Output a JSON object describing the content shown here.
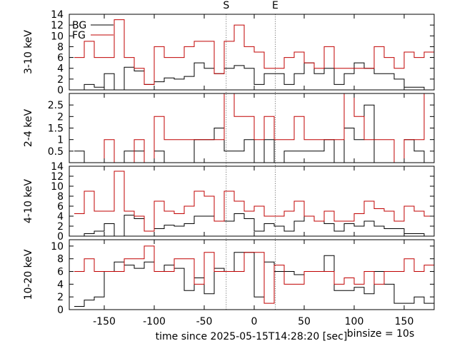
{
  "chart_data": {
    "type": "line",
    "drawstyle": "steps",
    "xlabel": "time since 2025-05-15T14:28:20 [sec]",
    "note": "binsize = 10s",
    "xlim": [
      -185,
      180
    ],
    "x_ticks": [
      -150,
      -100,
      -50,
      0,
      50,
      100,
      150
    ],
    "bin_size": 10,
    "x": [
      -180,
      -170,
      -160,
      -150,
      -140,
      -130,
      -120,
      -110,
      -100,
      -90,
      -80,
      -70,
      -60,
      -50,
      -40,
      -30,
      -20,
      -10,
      0,
      10,
      20,
      30,
      40,
      50,
      60,
      70,
      80,
      90,
      100,
      110,
      120,
      130,
      140,
      150,
      160,
      170
    ],
    "markers": [
      {
        "label": "S",
        "x": -28
      },
      {
        "label": "E",
        "x": 21
      }
    ],
    "panels": [
      {
        "ylabel": "3-10 keV",
        "ylim": [
          0,
          14
        ],
        "y_ticks": [
          0,
          2,
          4,
          6,
          8,
          10,
          12,
          14
        ],
        "series": [
          {
            "name": "BG",
            "color": "#000000",
            "values": [
              0,
              1,
              0.5,
              3,
              0,
              4.2,
              3.5,
              1,
              1.5,
              2.2,
              2,
              2.5,
              5,
              4,
              3,
              4,
              4.5,
              4,
              1,
              3,
              3,
              1,
              3,
              5,
              3,
              4,
              1,
              3,
              5,
              4,
              3,
              3,
              2,
              0.5,
              0.5,
              0
            ]
          },
          {
            "name": "FG",
            "color": "#c00000",
            "values": [
              6,
              9,
              6,
              6,
              13,
              6,
              4,
              1,
              8,
              6,
              6,
              8,
              9,
              9,
              3,
              9,
              12,
              8,
              7,
              4,
              4,
              6,
              7,
              5,
              4,
              8,
              4,
              4,
              4,
              4,
              8,
              6,
              4,
              7,
              6,
              7
            ]
          }
        ]
      },
      {
        "ylabel": "2-4 keV",
        "ylim": [
          0,
          3
        ],
        "y_ticks": [
          0.5,
          1,
          1.5,
          2,
          2.5
        ],
        "series": [
          {
            "name": "BG",
            "color": "#000000",
            "values": [
              0.5,
              0,
              0,
              0,
              0,
              0.5,
              0.5,
              0,
              0.5,
              0,
              0,
              0,
              1,
              1,
              1.5,
              0.5,
              0.5,
              1,
              0,
              1,
              0,
              0.5,
              0.5,
              0.5,
              0.5,
              1,
              0,
              1.5,
              1,
              2.5,
              0,
              0,
              0,
              1,
              0.5,
              0
            ]
          },
          {
            "name": "FG",
            "color": "#c00000",
            "values": [
              0,
              0,
              0,
              1,
              0,
              0,
              1,
              0,
              2,
              1,
              1,
              1,
              1,
              1,
              1,
              3,
              2,
              2,
              1,
              2,
              1,
              1,
              2,
              1,
              1,
              1,
              1,
              3,
              2,
              1,
              1,
              1,
              0,
              1,
              1,
              3
            ]
          }
        ]
      },
      {
        "ylabel": "4-10 keV",
        "ylim": [
          0,
          14
        ],
        "y_ticks": [
          0,
          2,
          4,
          6,
          8,
          10,
          12,
          14
        ],
        "series": [
          {
            "name": "BG",
            "color": "#000000",
            "values": [
              0,
              0.5,
              1,
              2.5,
              0,
              4.2,
              3.5,
              1,
              1.5,
              2.2,
              2,
              2.5,
              4,
              4,
              3,
              3,
              4.5,
              3.5,
              1,
              2.5,
              2,
              1,
              3,
              4,
              3,
              2.5,
              1,
              2.5,
              2,
              3,
              2,
              1.5,
              1.5,
              0.5,
              0.5,
              0
            ]
          },
          {
            "name": "FG",
            "color": "#c00000",
            "values": [
              4.5,
              9,
              5,
              5,
              13,
              5,
              4,
              1,
              7,
              5,
              4.5,
              6,
              9,
              8,
              3,
              9,
              7,
              5,
              6,
              4,
              4,
              5,
              7,
              4,
              3,
              5,
              3,
              3,
              4.5,
              7,
              5.5,
              5,
              3,
              6,
              5,
              4
            ]
          }
        ]
      },
      {
        "ylabel": "10-20 keV",
        "ylim": [
          0,
          11
        ],
        "y_ticks": [
          0,
          2,
          4,
          6,
          8,
          10
        ],
        "series": [
          {
            "name": "BG",
            "color": "#000000",
            "values": [
              0.5,
              1.5,
              2,
              6,
              7.5,
              7,
              6.5,
              7.5,
              6,
              7,
              6.5,
              3,
              5,
              2.5,
              6.5,
              6,
              9,
              9,
              2,
              7.5,
              6,
              6,
              5.5,
              6,
              6,
              8.5,
              3,
              3,
              3.5,
              2.5,
              6,
              4,
              1,
              1,
              2,
              1
            ]
          },
          {
            "name": "FG",
            "color": "#c00000",
            "values": [
              6,
              8,
              6,
              6,
              6,
              8,
              8,
              10,
              6,
              6,
              8,
              8,
              4,
              9,
              6,
              6,
              6,
              9,
              9,
              1,
              7,
              4,
              4,
              6,
              6,
              6,
              4,
              5,
              4,
              6,
              4,
              6,
              6,
              8,
              6,
              7
            ]
          }
        ]
      }
    ]
  }
}
